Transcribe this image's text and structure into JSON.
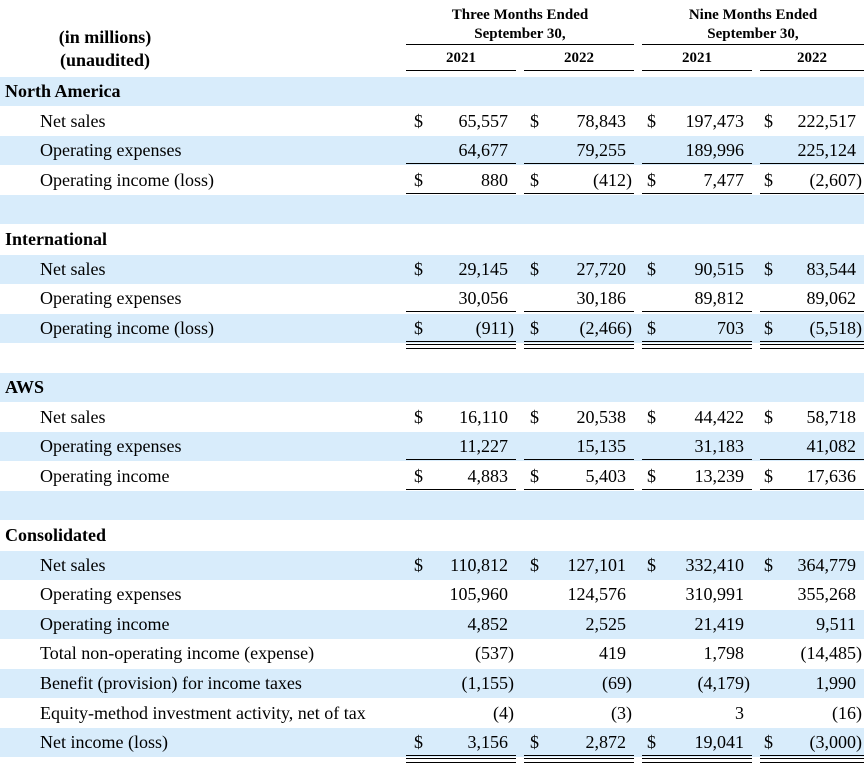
{
  "header": {
    "units_line1": "(in millions)",
    "units_line2": "(unaudited)",
    "three_months_line1": "Three Months Ended",
    "three_months_line2": "September 30,",
    "nine_months_line1": "Nine Months Ended",
    "nine_months_line2": "September 30,",
    "years": [
      "2021",
      "2022",
      "2021",
      "2022"
    ]
  },
  "segments": [
    {
      "name": "North America",
      "rows": [
        {
          "label": "Net sales",
          "dollar": true,
          "values": [
            "65,557",
            "78,843",
            "197,473",
            "222,517"
          ]
        },
        {
          "label": "Operating expenses",
          "dollar": false,
          "values": [
            "64,677",
            "79,255",
            "189,996",
            "225,124"
          ]
        },
        {
          "label": "Operating income (loss)",
          "dollar": true,
          "values": [
            "880",
            "(412)",
            "7,477",
            "(2,607)"
          ]
        }
      ]
    },
    {
      "name": "International",
      "rows": [
        {
          "label": "Net sales",
          "dollar": true,
          "values": [
            "29,145",
            "27,720",
            "90,515",
            "83,544"
          ]
        },
        {
          "label": "Operating expenses",
          "dollar": false,
          "values": [
            "30,056",
            "30,186",
            "89,812",
            "89,062"
          ]
        },
        {
          "label": "Operating income (loss)",
          "dollar": true,
          "values": [
            "(911)",
            "(2,466)",
            "703",
            "(5,518)"
          ]
        }
      ]
    },
    {
      "name": "AWS",
      "rows": [
        {
          "label": "Net sales",
          "dollar": true,
          "values": [
            "16,110",
            "20,538",
            "44,422",
            "58,718"
          ]
        },
        {
          "label": "Operating expenses",
          "dollar": false,
          "values": [
            "11,227",
            "15,135",
            "31,183",
            "41,082"
          ]
        },
        {
          "label": "Operating income",
          "dollar": true,
          "values": [
            "4,883",
            "5,403",
            "13,239",
            "17,636"
          ]
        }
      ]
    },
    {
      "name": "Consolidated",
      "rows": [
        {
          "label": "Net sales",
          "dollar": true,
          "values": [
            "110,812",
            "127,101",
            "332,410",
            "364,779"
          ]
        },
        {
          "label": "Operating expenses",
          "dollar": false,
          "values": [
            "105,960",
            "124,576",
            "310,991",
            "355,268"
          ]
        },
        {
          "label": "Operating income",
          "dollar": false,
          "values": [
            "4,852",
            "2,525",
            "21,419",
            "9,511"
          ]
        },
        {
          "label": "Total non-operating income (expense)",
          "dollar": false,
          "values": [
            "(537)",
            "419",
            "1,798",
            "(14,485)"
          ]
        },
        {
          "label": "Benefit (provision) for income taxes",
          "dollar": false,
          "values": [
            "(1,155)",
            "(69)",
            "(4,179)",
            "1,990"
          ]
        },
        {
          "label": "Equity-method investment activity, net of tax",
          "dollar": false,
          "values": [
            "(4)",
            "(3)",
            "3",
            "(16)"
          ]
        },
        {
          "label": "Net income (loss)",
          "dollar": true,
          "values": [
            "3,156",
            "2,872",
            "19,041",
            "(3,000)"
          ]
        }
      ]
    }
  ],
  "currency_symbol": "$",
  "colors": {
    "stripe": "#d8ecfb",
    "text": "#000000"
  }
}
